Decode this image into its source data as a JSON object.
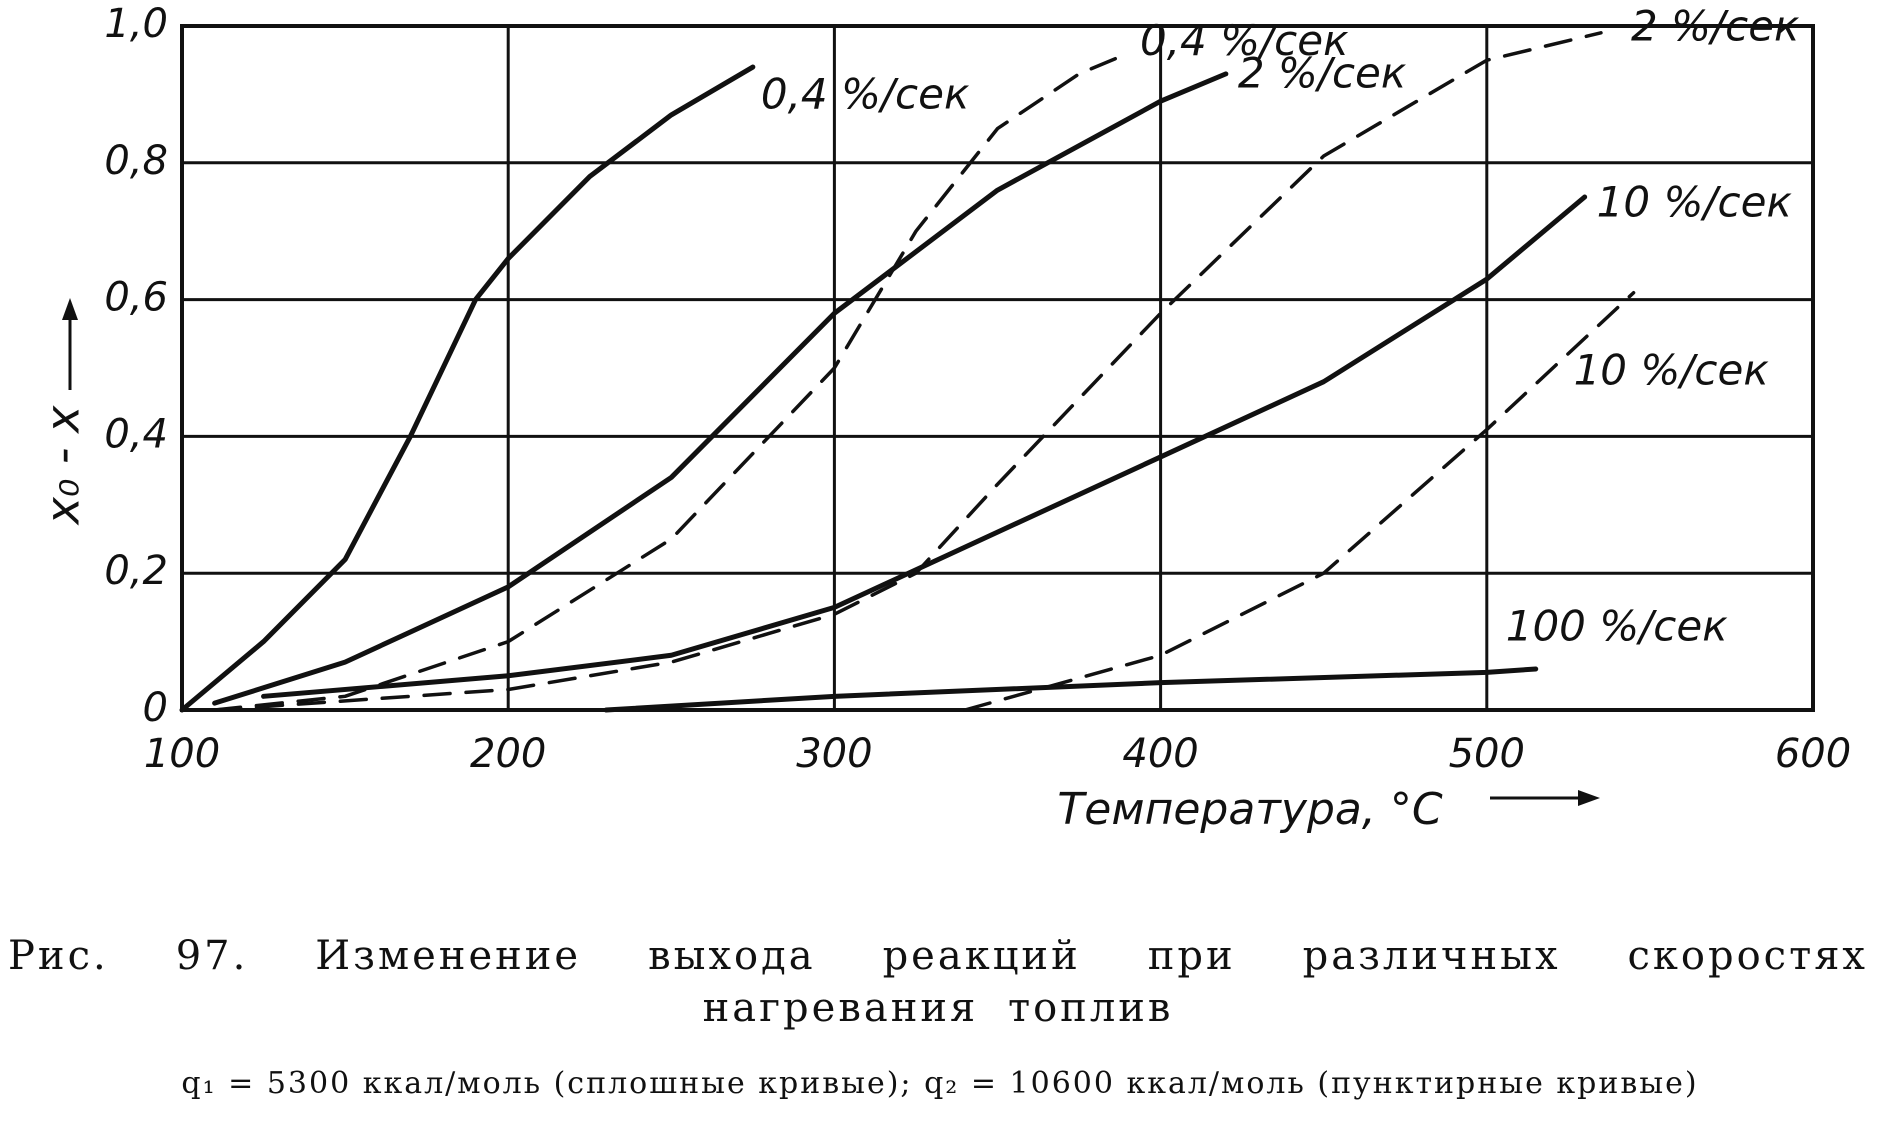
{
  "chart_data": {
    "type": "line",
    "xlabel": "Температура, °С",
    "ylabel": "x₀ - x",
    "caption": "Рис. 97. Изменение выхода реакций при различных скоростях нагревания топлив",
    "subcaption": "q₁ = 5300 ккал/моль (сплошные кривые); q₂ = 10600 ккал/моль (пунктирные кривые)",
    "xlim": [
      100,
      600
    ],
    "ylim": [
      0,
      1.0
    ],
    "xticks": [
      100,
      200,
      300,
      400,
      500,
      600
    ],
    "yticks": [
      0,
      {
        "value": 0.2,
        "label": "0,2"
      },
      {
        "value": 0.4,
        "label": "0,4"
      },
      {
        "value": 0.6,
        "label": "0,6"
      },
      {
        "value": 0.8,
        "label": "0,8"
      },
      {
        "value": 1.0,
        "label": "1,0"
      }
    ],
    "grid": true,
    "color": "#111111",
    "series": [
      {
        "name": "0,4 %/сек",
        "style": "solid",
        "x": [
          100,
          125,
          150,
          170,
          190,
          200,
          225,
          250,
          275
        ],
        "values": [
          0,
          0.1,
          0.22,
          0.4,
          0.6,
          0.66,
          0.78,
          0.87,
          0.94
        ]
      },
      {
        "name": "0,4 %/сек",
        "style": "dashed",
        "x": [
          110,
          150,
          200,
          250,
          300,
          325,
          350,
          375,
          390
        ],
        "values": [
          0,
          0.02,
          0.1,
          0.25,
          0.5,
          0.7,
          0.85,
          0.93,
          0.96
        ]
      },
      {
        "name": "2 %/сек",
        "style": "solid",
        "x": [
          110,
          150,
          200,
          250,
          300,
          350,
          400,
          420
        ],
        "values": [
          0.01,
          0.07,
          0.18,
          0.34,
          0.58,
          0.76,
          0.89,
          0.93
        ]
      },
      {
        "name": "2 %/сек",
        "style": "dashed",
        "x": [
          110,
          200,
          250,
          300,
          325,
          350,
          400,
          450,
          500,
          535
        ],
        "values": [
          0,
          0.03,
          0.07,
          0.14,
          0.2,
          0.33,
          0.58,
          0.81,
          0.95,
          0.99
        ]
      },
      {
        "name": "10 %/сек",
        "style": "solid",
        "x": [
          125,
          200,
          250,
          300,
          350,
          400,
          450,
          500,
          530
        ],
        "values": [
          0.02,
          0.05,
          0.08,
          0.15,
          0.26,
          0.37,
          0.48,
          0.63,
          0.75
        ]
      },
      {
        "name": "10 %/сек",
        "style": "dashed",
        "x": [
          340,
          400,
          450,
          500,
          545
        ],
        "values": [
          0,
          0.08,
          0.2,
          0.41,
          0.61
        ]
      },
      {
        "name": "100 %/сек",
        "style": "solid",
        "x": [
          230,
          300,
          400,
          500,
          515
        ],
        "values": [
          0,
          0.02,
          0.04,
          0.055,
          0.06
        ]
      }
    ]
  }
}
